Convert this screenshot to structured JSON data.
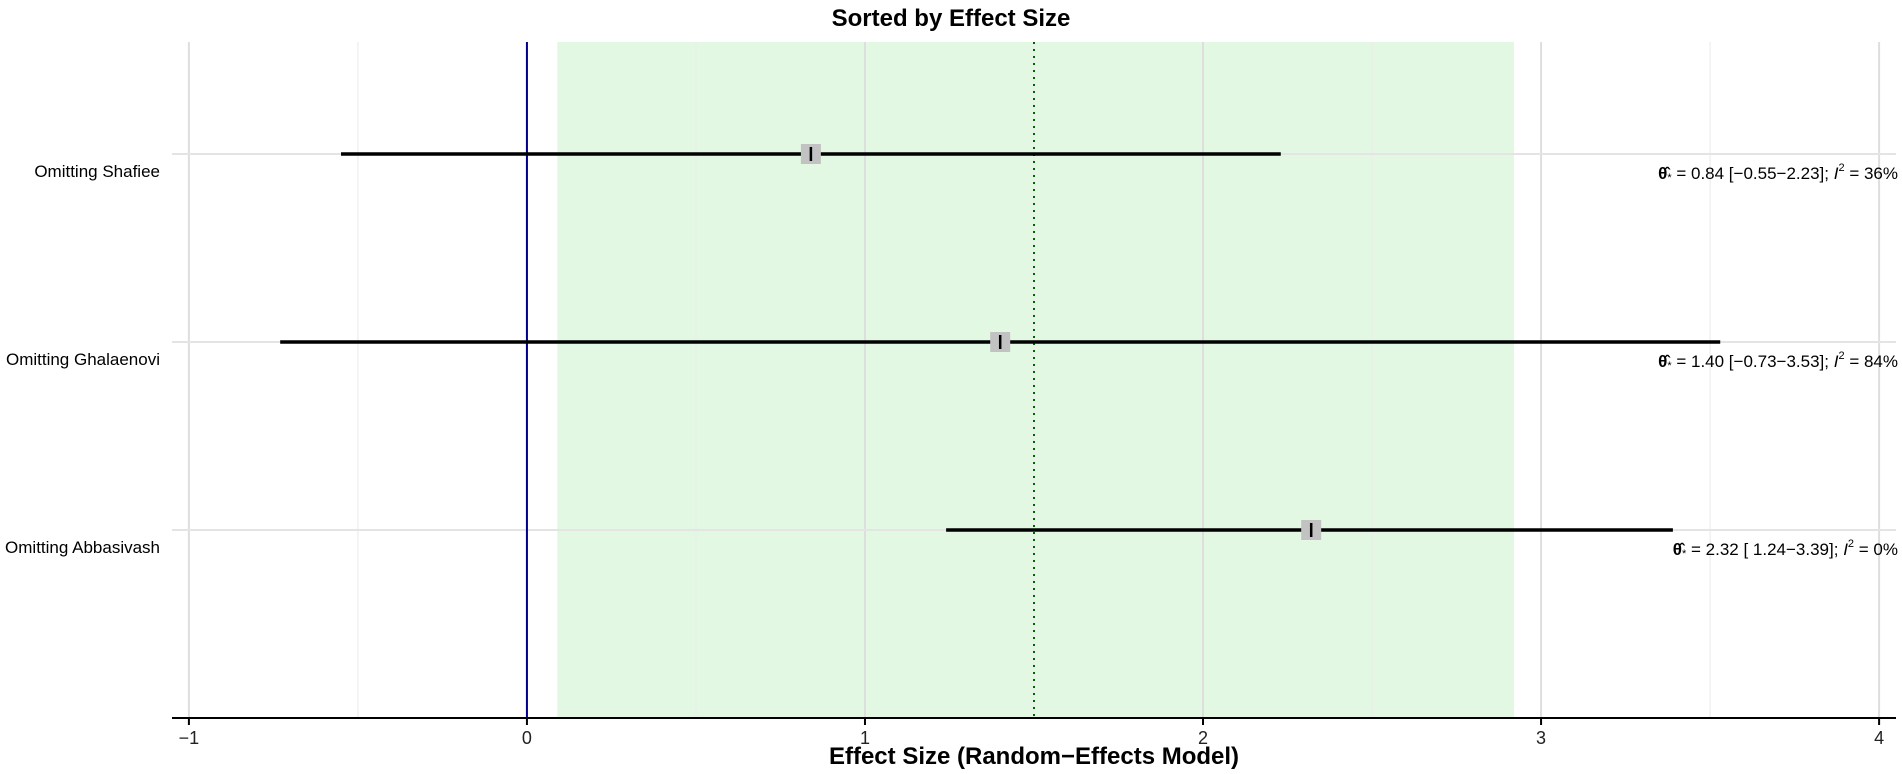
{
  "chart_data": {
    "type": "forest",
    "title": "Sorted by Effect Size",
    "xlabel": "Effect Size (Random−Effects Model)",
    "ylabel": "",
    "xlim": [
      -1.05,
      4.05
    ],
    "x_ticks": [
      -1,
      0,
      1,
      2,
      3,
      4
    ],
    "x_tick_labels": [
      "−1",
      "0",
      "1",
      "2",
      "3",
      "4"
    ],
    "grid": true,
    "null_line": 0,
    "null_line_color": "#00008b",
    "pooled_estimate": 1.5,
    "pooled_estimate_line_color": "#006400",
    "prediction_interval": [
      0.09,
      2.92
    ],
    "prediction_interval_color": "#e2f8e2",
    "marker_color": "#c2c2c2",
    "interval_color": "#000000",
    "rows": [
      {
        "label": "Omitting Shafiee",
        "estimate": 0.84,
        "lower": -0.55,
        "upper": 2.23,
        "annotation": {
          "prefix": "θ̂",
          "subscript": "*",
          "value_text": " = 0.84 [−0.55−2.23]; ",
          "i2_symbol": "I",
          "i2_superscript": "2",
          "i2_text": " = 36%"
        }
      },
      {
        "label": "Omitting Ghalaenovi",
        "estimate": 1.4,
        "lower": -0.73,
        "upper": 3.53,
        "annotation": {
          "prefix": "θ̂",
          "subscript": "*",
          "value_text": " = 1.40 [−0.73−3.53]; ",
          "i2_symbol": "I",
          "i2_superscript": "2",
          "i2_text": " = 84%"
        }
      },
      {
        "label": "Omitting Abbasivash",
        "estimate": 2.32,
        "lower": 1.24,
        "upper": 3.39,
        "annotation": {
          "prefix": "θ̂",
          "subscript": "*",
          "value_text": " = 2.32 [ 1.24−3.39]; ",
          "i2_symbol": "I",
          "i2_superscript": "2",
          "i2_text": " =  0%"
        }
      }
    ]
  }
}
